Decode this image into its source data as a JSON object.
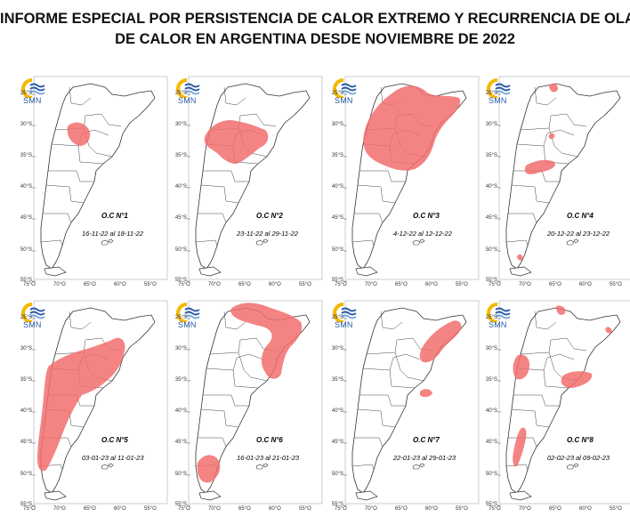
{
  "title": {
    "line1": "INFORME ESPECIAL POR PERSISTENCIA DE CALOR EXTREMO Y RECURRENCIA DE OLAS",
    "line2": "DE CALOR EN ARGENTINA DESDE NOVIEMBRE DE 2022"
  },
  "logo_text": "SMN",
  "lat_labels": [
    "25°S",
    "30°S",
    "35°S",
    "40°S",
    "45°S",
    "50°S",
    "55°S"
  ],
  "lon_labels": [
    "75°O",
    "70°O",
    "65°O",
    "60°O",
    "55°O"
  ],
  "colors": {
    "heat": "#f26d6d",
    "border": "#333333",
    "logo_sun": "#f5b800",
    "logo_blue": "#2a5aa8"
  },
  "panels": [
    {
      "oc": "O.C N°1",
      "dates": "16-11-22 al 18-11-22"
    },
    {
      "oc": "O.C N°2",
      "dates": "23-11-22 al 29-11-22"
    },
    {
      "oc": "O.C N°3",
      "dates": "4-12-22 al 12-12-22"
    },
    {
      "oc": "O.C N°4",
      "dates": "20-12-22 al 23-12-22"
    },
    {
      "oc": "O.C N°5",
      "dates": "03-01-23 al 11-01-23"
    },
    {
      "oc": "O.C N°6",
      "dates": "16-01-23 al 21-01-23"
    },
    {
      "oc": "O.C N°7",
      "dates": "22-01-23 al 29-01-23"
    },
    {
      "oc": "O.C N°8",
      "dates": "02-02-23 al 09-02-23"
    }
  ]
}
